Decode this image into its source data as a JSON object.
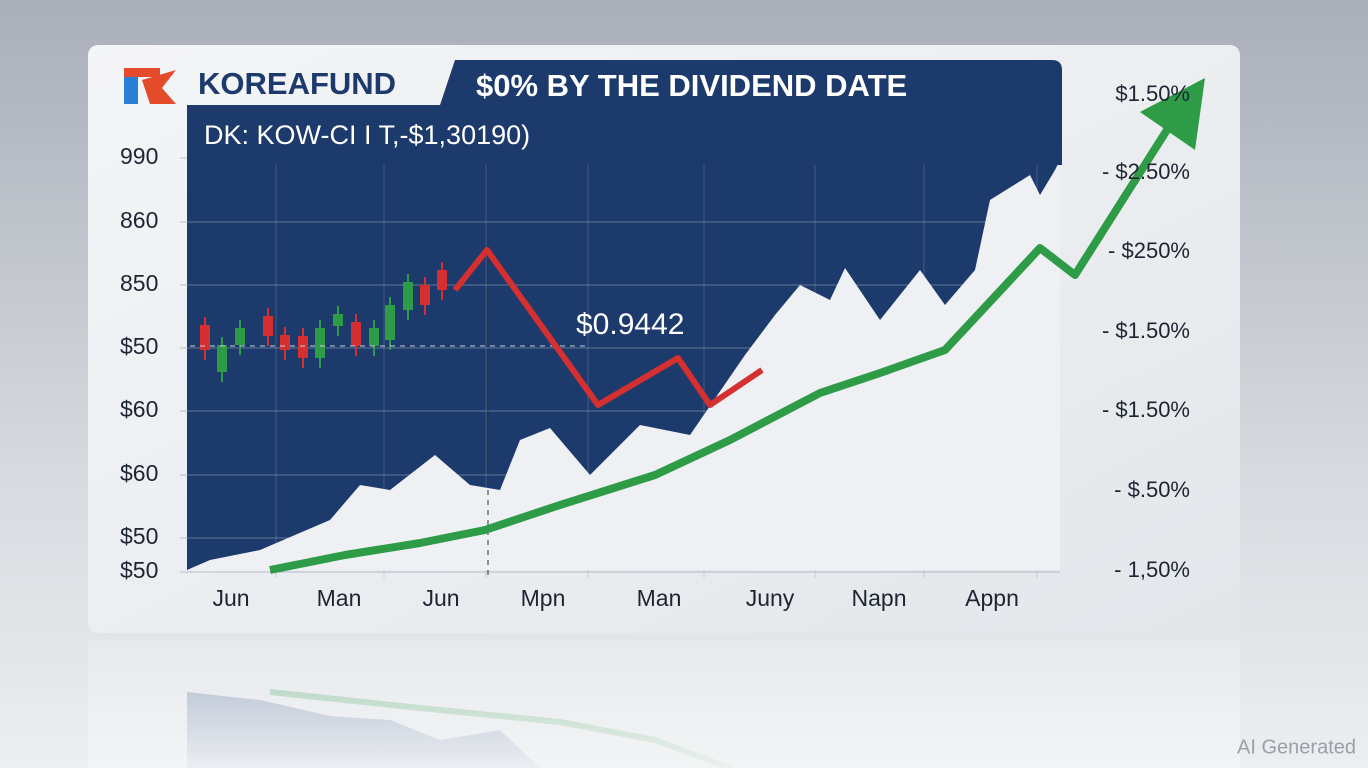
{
  "header": {
    "brand": "KOREAFUND",
    "title": "$0% BY THE DIVIDEND DATE",
    "subtitle": "DK: KOW-CI I T,-$1,30190)"
  },
  "axis": {
    "left": [
      "990",
      "860",
      "850",
      "$50",
      "$60",
      "$60",
      "$50",
      "$50"
    ],
    "right": [
      "$1.50%",
      "- $2.50%",
      "- $250%",
      "- $1.50%",
      "- $1.50%",
      "- $.50%",
      "- 1,50%"
    ],
    "bottom": [
      "Jun",
      "Man",
      "Jun",
      "Mpn",
      "Man",
      "Juny",
      "Napn",
      "Appn"
    ]
  },
  "annotation": "$0.9442",
  "watermark": "AI Generated"
}
